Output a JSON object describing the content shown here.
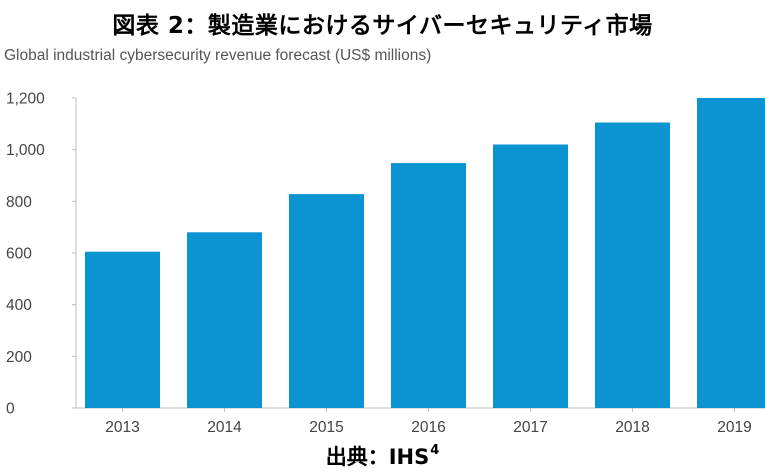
{
  "figure": {
    "title": "図表 2：製造業におけるサイバーセキュリティ市場",
    "source_label": "出典：IHS",
    "source_footnote": "4"
  },
  "chart_data": {
    "type": "bar",
    "title": "Global industrial cybersecurity revenue forecast (US$ millions)",
    "xlabel": "",
    "ylabel": "",
    "categories": [
      "2013",
      "2014",
      "2015",
      "2016",
      "2017",
      "2018",
      "2019"
    ],
    "values": [
      605,
      680,
      828,
      948,
      1020,
      1105,
      1200
    ],
    "ylim": [
      0,
      1200
    ],
    "yticks": [
      0,
      200,
      400,
      600,
      800,
      1000,
      1200
    ],
    "ytick_labels": [
      "0",
      "200",
      "400",
      "600",
      "800",
      "1,000",
      "1,200"
    ],
    "bar_color": "#0b94d1",
    "grid": false,
    "legend": "none"
  }
}
